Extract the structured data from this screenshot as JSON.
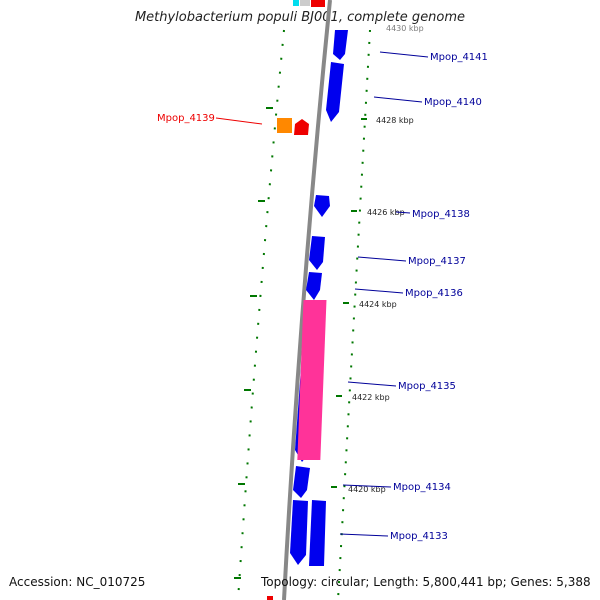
{
  "title": "Methylobacterium populi BJ001, complete genome",
  "footer": {
    "accession": "Accession: NC_010725",
    "topology": "Topology: circular; Length: 5,800,441 bp; Genes: 5,388"
  },
  "colors": {
    "backbone": "#888888",
    "gene_default": "#0000ee",
    "gene_highlight": "#ee0000",
    "gene_orange": "#ff8800",
    "gene_pink": "#ff3399",
    "gene_cyan": "#00ddee",
    "label_default": "#000099",
    "tick": "#007700"
  },
  "scale_labels": [
    {
      "text": "4430 kbp",
      "faded": true
    },
    {
      "text": "4428 kbp"
    },
    {
      "text": "4426 kbp"
    },
    {
      "text": "4424 kbp"
    },
    {
      "text": "4422 kbp"
    },
    {
      "text": "4420 kbp"
    }
  ],
  "genes": [
    {
      "label": "Mpop_4141",
      "color": "#000099"
    },
    {
      "label": "Mpop_4140",
      "color": "#000099"
    },
    {
      "label": "Mpop_4139",
      "color": "#ee0000"
    },
    {
      "label": "Mpop_4138",
      "color": "#000099"
    },
    {
      "label": "Mpop_4137",
      "color": "#000099"
    },
    {
      "label": "Mpop_4136",
      "color": "#000099"
    },
    {
      "label": "Mpop_4135",
      "color": "#000099"
    },
    {
      "label": "Mpop_4134",
      "color": "#000099"
    },
    {
      "label": "Mpop_4133",
      "color": "#000099"
    }
  ]
}
